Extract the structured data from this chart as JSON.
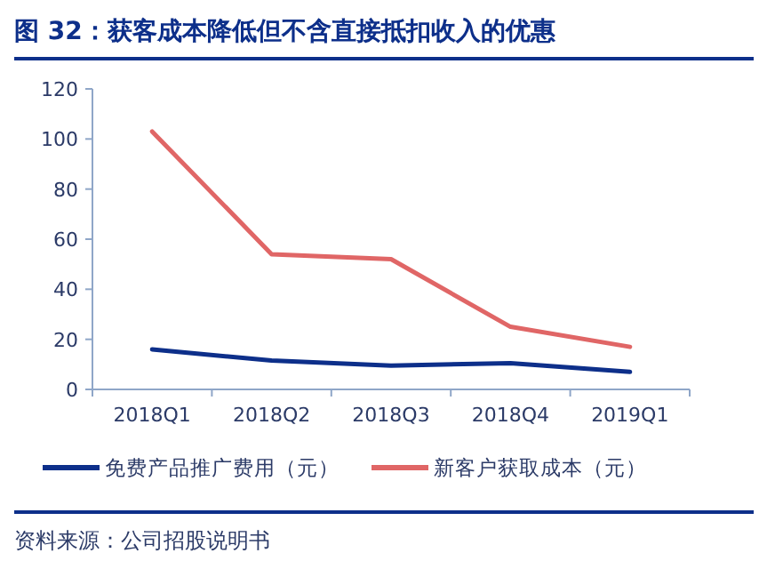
{
  "chart_data": {
    "type": "line",
    "title": "图 32：获客成本降低但不含直接抵扣收入的优惠",
    "categories": [
      "2018Q1",
      "2018Q2",
      "2018Q3",
      "2018Q4",
      "2019Q1"
    ],
    "series": [
      {
        "name": "免费产品推广费用（元）",
        "color": "#0d2f8a",
        "values": [
          16,
          11.5,
          9.5,
          10.5,
          7
        ]
      },
      {
        "name": "新客户获取成本（元）",
        "color": "#e06666",
        "values": [
          103,
          54,
          52,
          25,
          17
        ]
      }
    ],
    "ylim": [
      0,
      120
    ],
    "yticks": [
      0,
      20,
      40,
      60,
      80,
      100,
      120
    ],
    "legend": "bottom",
    "annotations": [
      "资料来源：公司招股说明书"
    ]
  }
}
